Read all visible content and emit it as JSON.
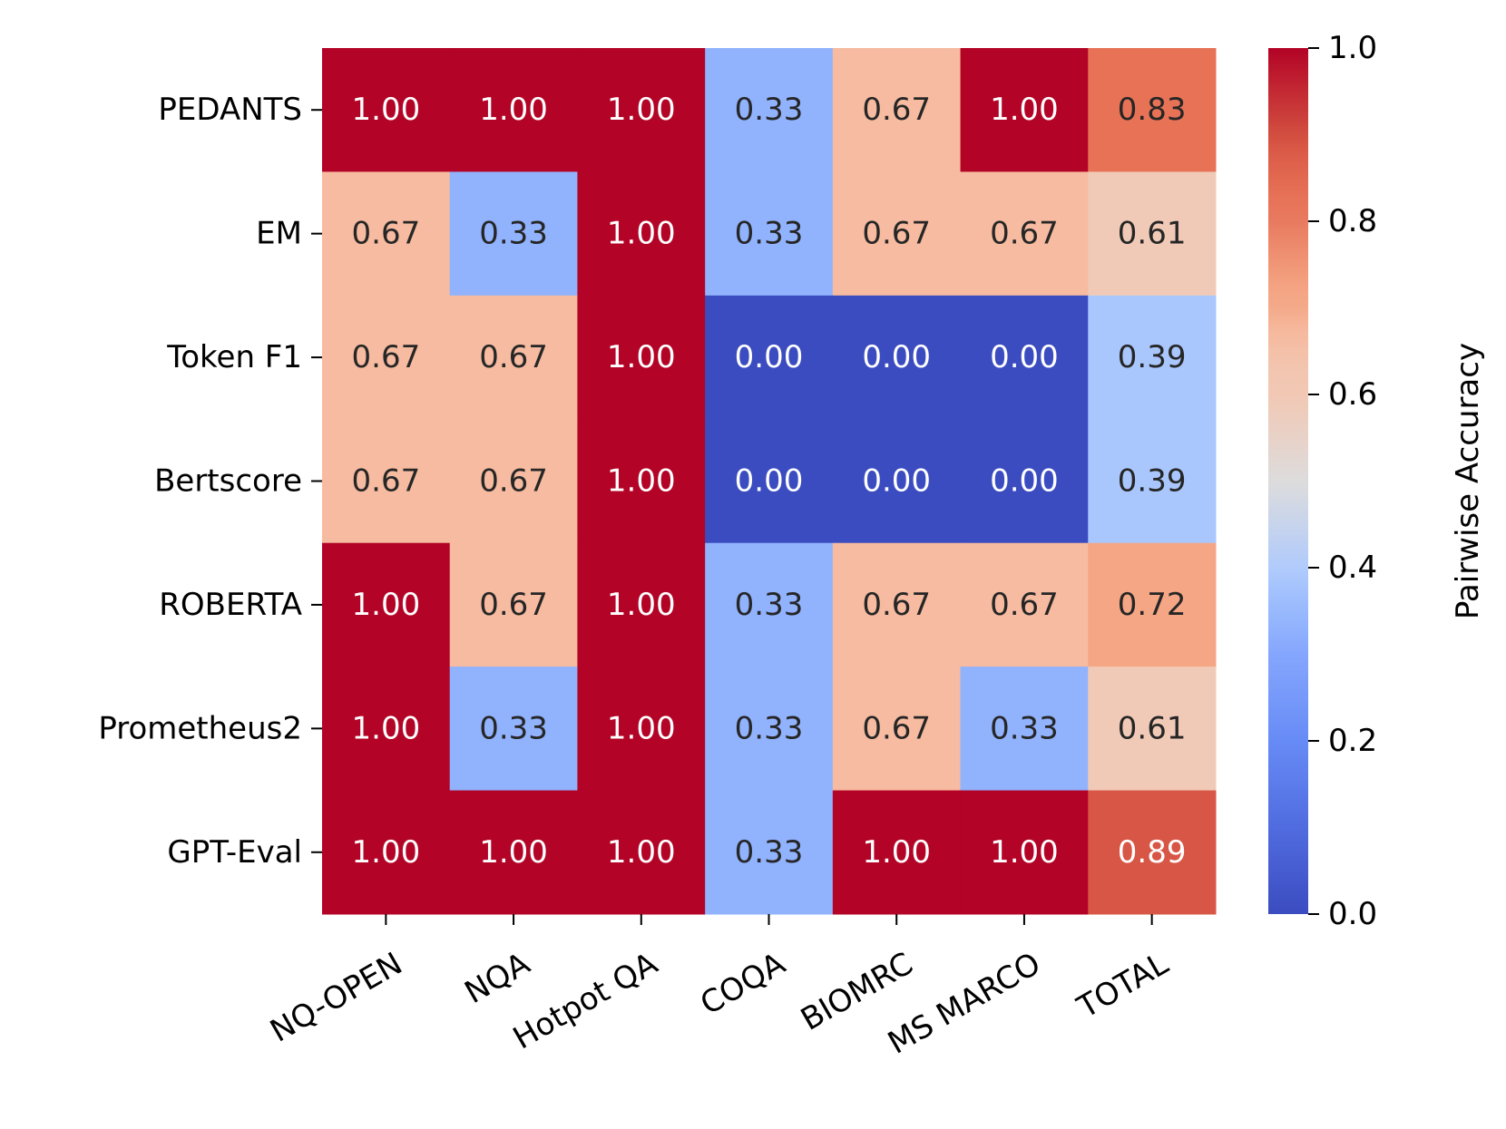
{
  "chart_data": {
    "type": "heatmap",
    "title": "",
    "xlabel": "",
    "ylabel": "",
    "rows": [
      "PEDANTS",
      "EM",
      "Token F1",
      "Bertscore",
      "ROBERTA",
      "Prometheus2",
      "GPT-Eval"
    ],
    "columns": [
      "NQ-OPEN",
      "NQA",
      "Hotpot QA",
      "COQA",
      "BIOMRC",
      "MS MARCO",
      "TOTAL"
    ],
    "values": [
      [
        1.0,
        1.0,
        1.0,
        0.33,
        0.67,
        1.0,
        0.83
      ],
      [
        0.67,
        0.33,
        1.0,
        0.33,
        0.67,
        0.67,
        0.61
      ],
      [
        0.67,
        0.67,
        1.0,
        0.0,
        0.0,
        0.0,
        0.39
      ],
      [
        0.67,
        0.67,
        1.0,
        0.0,
        0.0,
        0.0,
        0.39
      ],
      [
        1.0,
        0.67,
        1.0,
        0.33,
        0.67,
        0.67,
        0.72
      ],
      [
        1.0,
        0.33,
        1.0,
        0.33,
        0.67,
        0.33,
        0.61
      ],
      [
        1.0,
        1.0,
        1.0,
        0.33,
        1.0,
        1.0,
        0.89
      ]
    ],
    "value_format": "0.00",
    "colormap": "coolwarm",
    "vmin": 0.0,
    "vmax": 1.0,
    "colorbar": {
      "label": "Pairwise Accuracy",
      "ticks": [
        0.0,
        0.2,
        0.4,
        0.6,
        0.8,
        1.0
      ],
      "tick_labels": [
        "0.0",
        "0.2",
        "0.4",
        "0.6",
        "0.8",
        "1.0"
      ]
    },
    "x_tick_rotation": "30 degrees",
    "grid": false,
    "legend": "colorbar-right",
    "colors": {
      "low": "#3b4cc0",
      "mid": "#dddddd",
      "high": "#b40426",
      "dark_text": "#262626",
      "light_text": "#ffffff"
    }
  }
}
